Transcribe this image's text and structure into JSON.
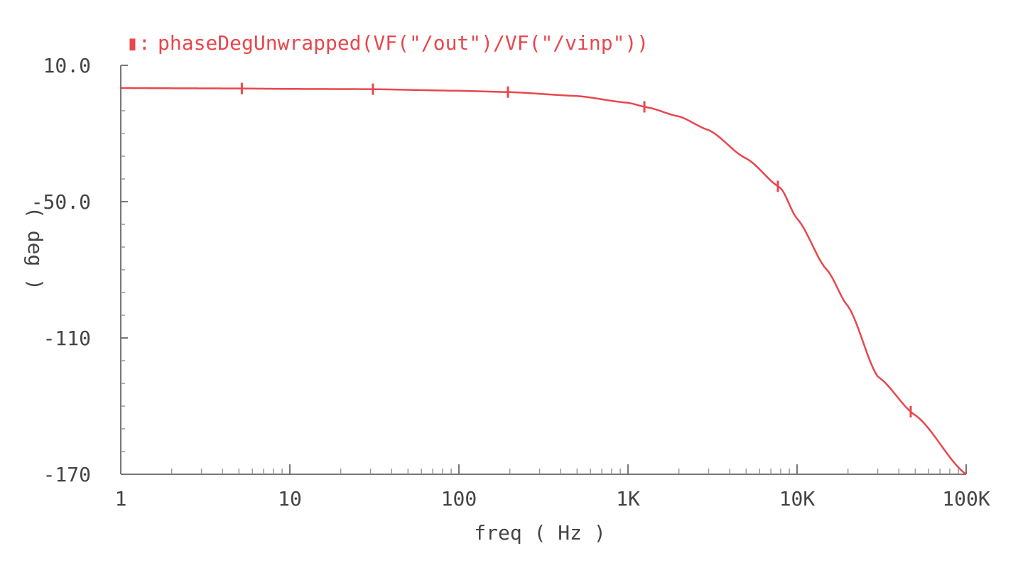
{
  "chart_data": {
    "type": "line",
    "title": "",
    "legend": {
      "marker_symbol": "▮:",
      "label": "phaseDegUnwrapped(VF(\"/out\")/VF(\"/vinp\"))",
      "placement": "top-left"
    },
    "xlabel": "freq ( Hz )",
    "ylabel": "( deg )",
    "x_scale": "log",
    "xlim": [
      1,
      100000
    ],
    "ylim": [
      -170,
      10
    ],
    "x_ticks": [
      {
        "value": 1,
        "label": "1"
      },
      {
        "value": 10,
        "label": "10"
      },
      {
        "value": 100,
        "label": "100"
      },
      {
        "value": 1000,
        "label": "1K"
      },
      {
        "value": 10000,
        "label": "10K"
      },
      {
        "value": 100000,
        "label": "100K"
      }
    ],
    "y_ticks": [
      {
        "value": 10,
        "label": "10.0"
      },
      {
        "value": -50,
        "label": "-50.0"
      },
      {
        "value": -110,
        "label": "-110"
      },
      {
        "value": -170,
        "label": "-170"
      }
    ],
    "grid": false,
    "series": [
      {
        "color": "#e8474d",
        "x": [
          1,
          2,
          5,
          10,
          30,
          100,
          200,
          500,
          1000,
          1300,
          2000,
          3000,
          5000,
          8000,
          10000,
          15000,
          20000,
          30000,
          50000,
          100000
        ],
        "y": [
          0,
          -0.1,
          -0.2,
          -0.4,
          -0.5,
          -1.2,
          -1.8,
          -3.5,
          -6.5,
          -8.5,
          -12.5,
          -18.5,
          -31,
          -44,
          -57.5,
          -80,
          -96,
          -127,
          -144,
          -170
        ]
      }
    ],
    "markers_x": [
      5.2,
      31,
      195,
      1250,
      7700,
      47000
    ]
  }
}
